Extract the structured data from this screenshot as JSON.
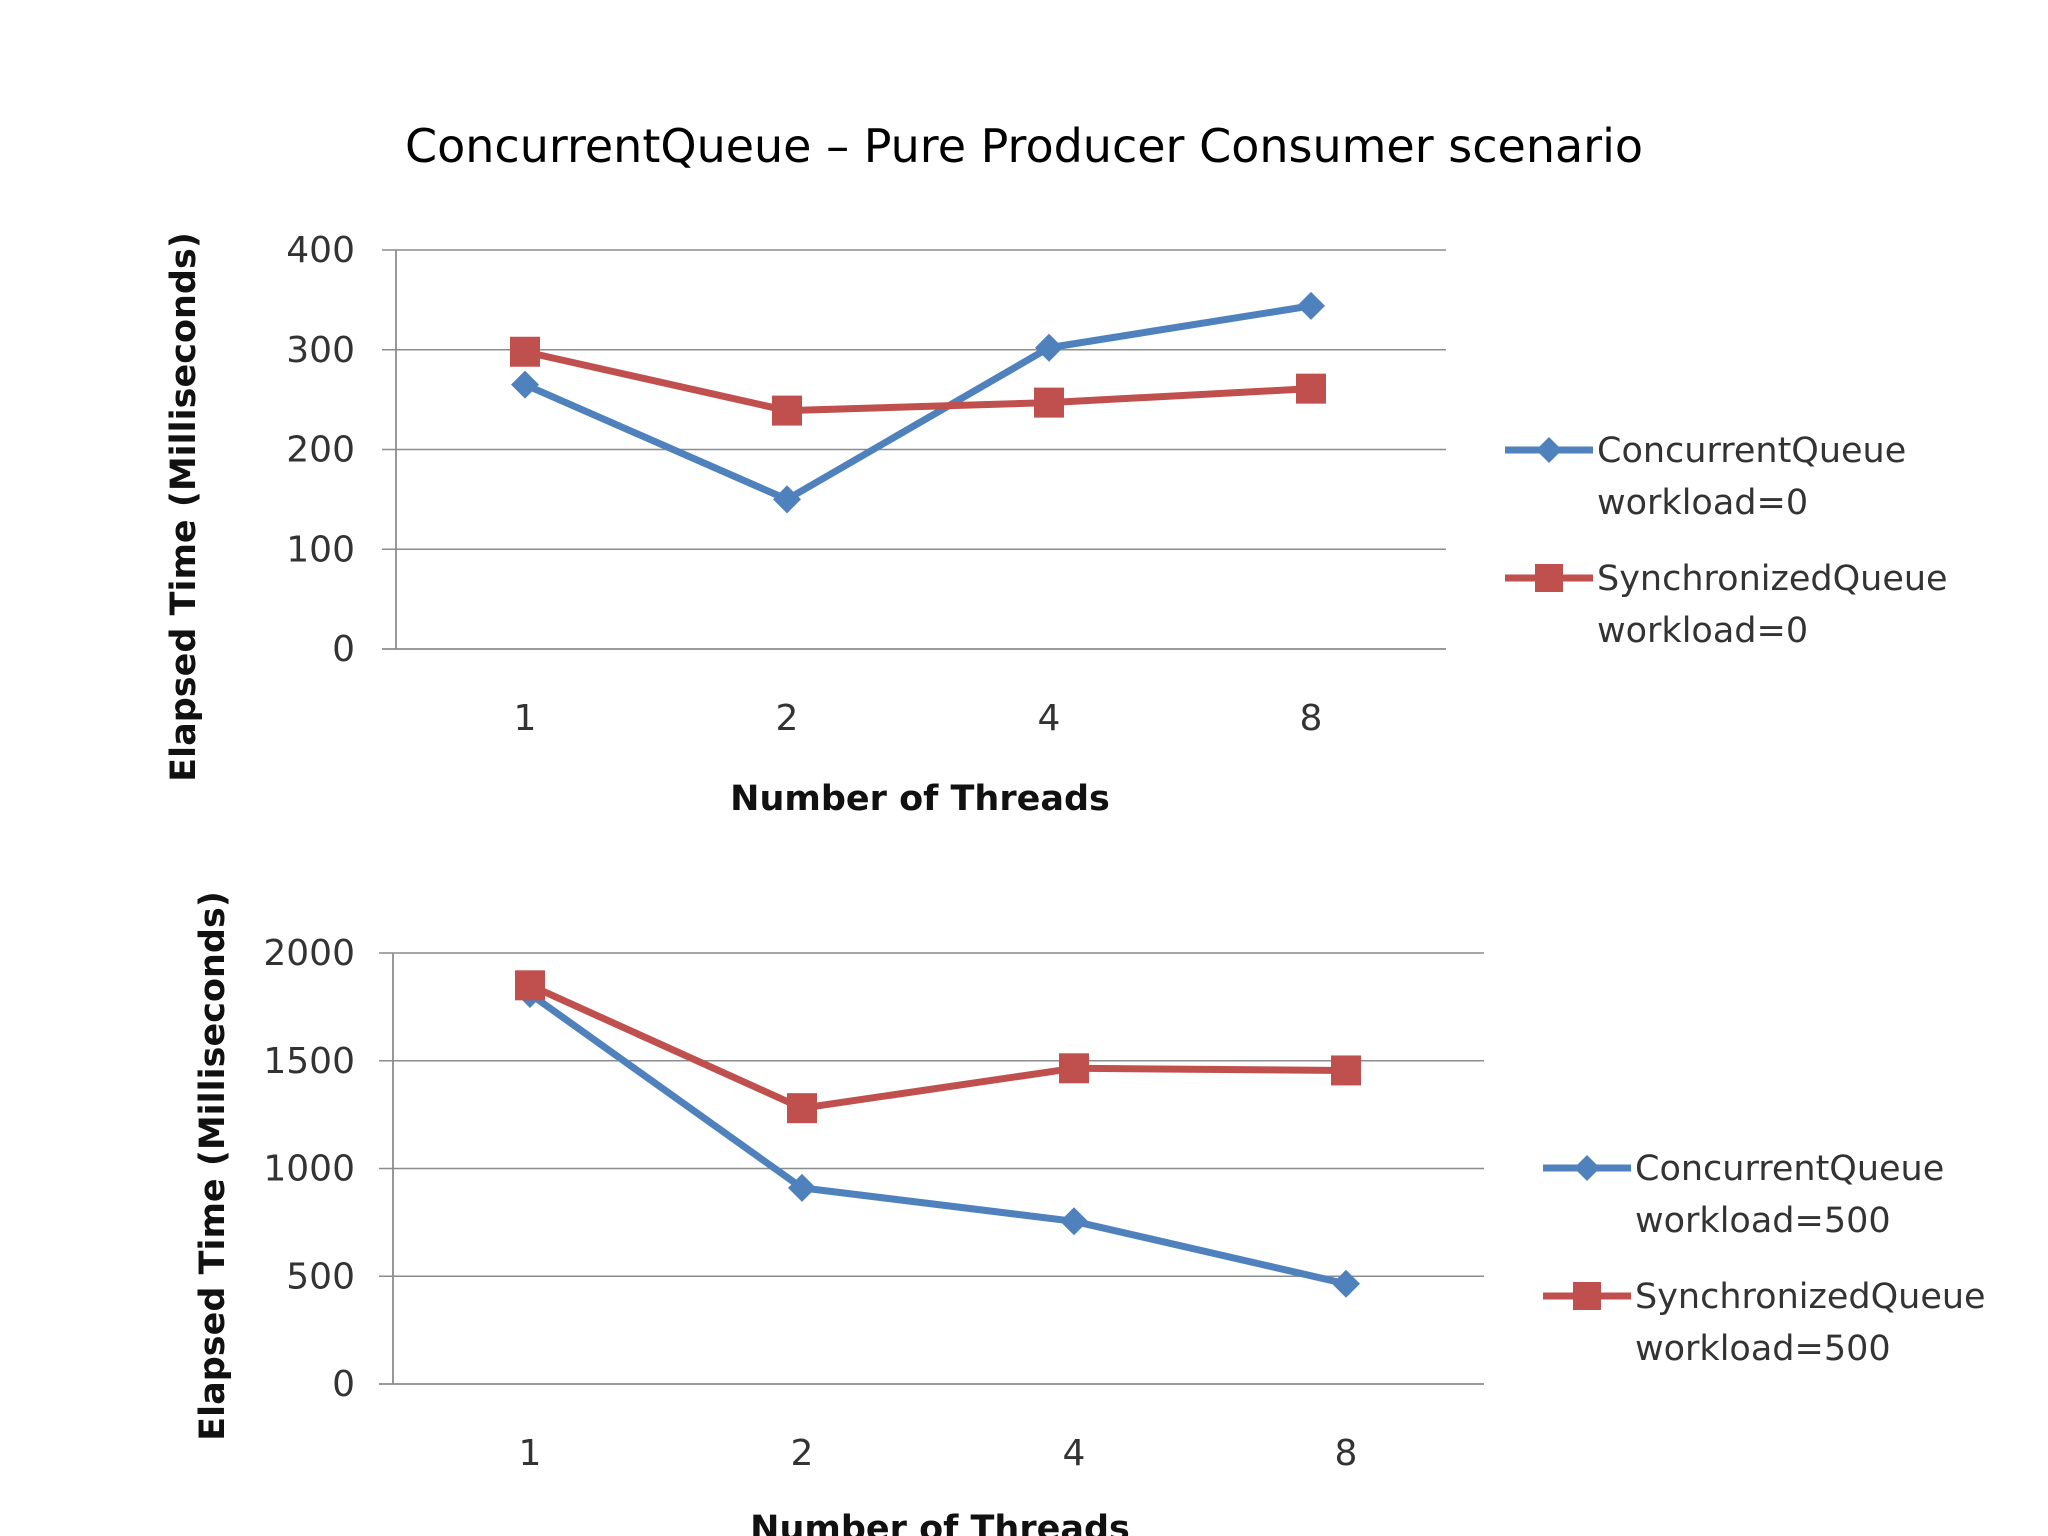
{
  "slide": {
    "title": "ConcurrentQueue – Pure Producer Consumer scenario"
  },
  "colors": {
    "concurrent": "#4f81bd",
    "synchronized": "#c0504d"
  },
  "chart_data": [
    {
      "type": "line",
      "categories": [
        "1",
        "2",
        "4",
        "8"
      ],
      "xlabel": "Number of Threads",
      "ylabel": "Elapsed Time (Milliseconds)",
      "ylim": [
        0,
        400
      ],
      "yticks": [
        0,
        100,
        200,
        300,
        400
      ],
      "grid": true,
      "legend_position": "right",
      "series": [
        {
          "key": "concurrent",
          "name": [
            "ConcurrentQueue",
            "workload=0"
          ],
          "marker": "diamond",
          "values": [
            265,
            150,
            302,
            344
          ]
        },
        {
          "key": "synchronized",
          "name": [
            "SynchronizedQueue",
            "workload=0"
          ],
          "marker": "square",
          "values": [
            298,
            239,
            247,
            261
          ]
        }
      ]
    },
    {
      "type": "line",
      "categories": [
        "1",
        "2",
        "4",
        "8"
      ],
      "xlabel": "Number of Threads",
      "ylabel": "Elapsed Time (Milliseconds)",
      "ylim": [
        0,
        2000
      ],
      "yticks": [
        0,
        500,
        1000,
        1500,
        2000
      ],
      "grid": true,
      "legend_position": "right",
      "series": [
        {
          "key": "concurrent",
          "name": [
            "ConcurrentQueue",
            "workload=500"
          ],
          "marker": "diamond",
          "values": [
            1810,
            910,
            755,
            465
          ]
        },
        {
          "key": "synchronized",
          "name": [
            "SynchronizedQueue",
            "workload=500"
          ],
          "marker": "square",
          "values": [
            1850,
            1280,
            1465,
            1455
          ]
        }
      ]
    }
  ]
}
